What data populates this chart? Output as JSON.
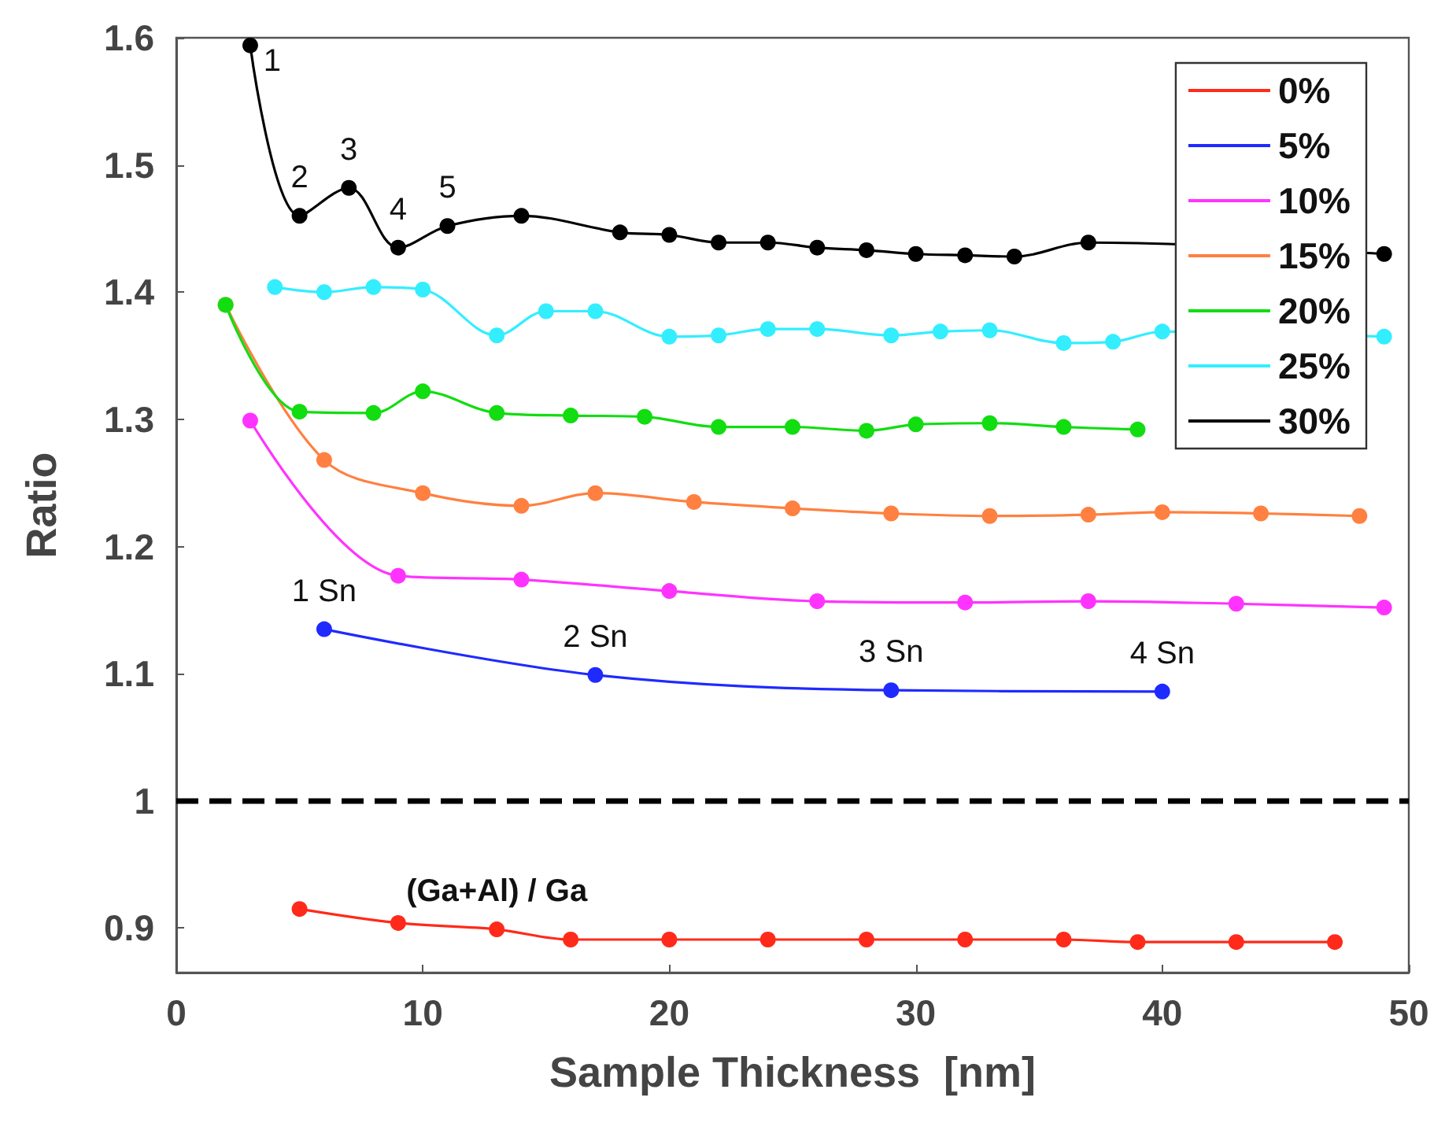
{
  "chart_data": {
    "type": "line",
    "xlabel": "Sample Thickness  [nm]",
    "ylabel": "Ratio",
    "xlim": [
      0,
      50
    ],
    "xticks": [
      0,
      10,
      20,
      30,
      40,
      50
    ],
    "ylim": [
      0.865,
      1.6
    ],
    "yticks": [
      0.9,
      1,
      1.1,
      1.2,
      1.3,
      1.4,
      1.5,
      1.6
    ],
    "grid": false,
    "legend": "top right",
    "marker": "circle",
    "line_style": "solid",
    "series": [
      {
        "name": "0%",
        "color": "#ff2a1a",
        "x": [
          5,
          9,
          13,
          16,
          20,
          24,
          28,
          32,
          36,
          39,
          43,
          47
        ],
        "values": [
          0.915,
          0.904,
          0.899,
          0.891,
          0.891,
          0.891,
          0.891,
          0.891,
          0.891,
          0.889,
          0.889,
          0.889
        ]
      },
      {
        "name": "5%",
        "color": "#1f2aff",
        "x": [
          6,
          17,
          29,
          40
        ],
        "values": [
          1.135,
          1.099,
          1.087,
          1.086
        ]
      },
      {
        "name": "10%",
        "color": "#ff33ff",
        "x": [
          3,
          9,
          14,
          20,
          26,
          32,
          37,
          43,
          49
        ],
        "values": [
          1.299,
          1.177,
          1.174,
          1.165,
          1.157,
          1.156,
          1.157,
          1.155,
          1.152
        ]
      },
      {
        "name": "15%",
        "color": "#ff8040",
        "x": [
          2,
          6,
          10,
          14,
          17,
          21,
          25,
          29,
          33,
          37,
          40,
          44,
          48
        ],
        "values": [
          1.39,
          1.268,
          1.242,
          1.232,
          1.242,
          1.235,
          1.23,
          1.226,
          1.224,
          1.225,
          1.227,
          1.226,
          1.224
        ]
      },
      {
        "name": "20%",
        "color": "#11dd11",
        "x": [
          2,
          5,
          8,
          10,
          13,
          16,
          19,
          22,
          25,
          28,
          30,
          33,
          36,
          39
        ],
        "values": [
          1.39,
          1.306,
          1.305,
          1.322,
          1.305,
          1.303,
          1.302,
          1.294,
          1.294,
          1.291,
          1.296,
          1.297,
          1.294,
          1.292
        ]
      },
      {
        "name": "25%",
        "color": "#33eeff",
        "x": [
          4,
          6,
          8,
          10,
          13,
          15,
          17,
          20,
          22,
          24,
          26,
          29,
          31,
          33,
          36,
          38,
          40,
          49
        ],
        "values": [
          1.404,
          1.4,
          1.404,
          1.402,
          1.366,
          1.385,
          1.385,
          1.365,
          1.366,
          1.371,
          1.371,
          1.366,
          1.369,
          1.37,
          1.36,
          1.361,
          1.369,
          1.365
        ]
      },
      {
        "name": "30%",
        "color": "#000000",
        "x": [
          3,
          5,
          7,
          9,
          11,
          14,
          18,
          20,
          22,
          24,
          26,
          28,
          30,
          32,
          34,
          37,
          49
        ],
        "values": [
          1.594,
          1.46,
          1.482,
          1.435,
          1.452,
          1.46,
          1.447,
          1.445,
          1.439,
          1.439,
          1.435,
          1.433,
          1.43,
          1.429,
          1.428,
          1.439,
          1.43
        ]
      }
    ],
    "ref_lines": [
      {
        "axis": "y",
        "value": 1,
        "color": "#000000",
        "line_style": "dashed"
      }
    ],
    "annotations": [
      {
        "text": "1",
        "x": 3,
        "y": 1.594
      },
      {
        "text": "2",
        "x": 5,
        "y": 1.46
      },
      {
        "text": "3",
        "x": 7,
        "y": 1.482
      },
      {
        "text": "4",
        "x": 9,
        "y": 1.435
      },
      {
        "text": "5",
        "x": 11,
        "y": 1.452
      },
      {
        "text": "1 Sn",
        "x": 6,
        "y": 1.135
      },
      {
        "text": "2 Sn",
        "x": 17,
        "y": 1.099
      },
      {
        "text": "3 Sn",
        "x": 29,
        "y": 1.087
      },
      {
        "text": "4 Sn",
        "x": 40,
        "y": 1.086
      },
      {
        "text": "(Ga+Al) / Ga",
        "x": 13,
        "y": 0.899
      }
    ]
  }
}
